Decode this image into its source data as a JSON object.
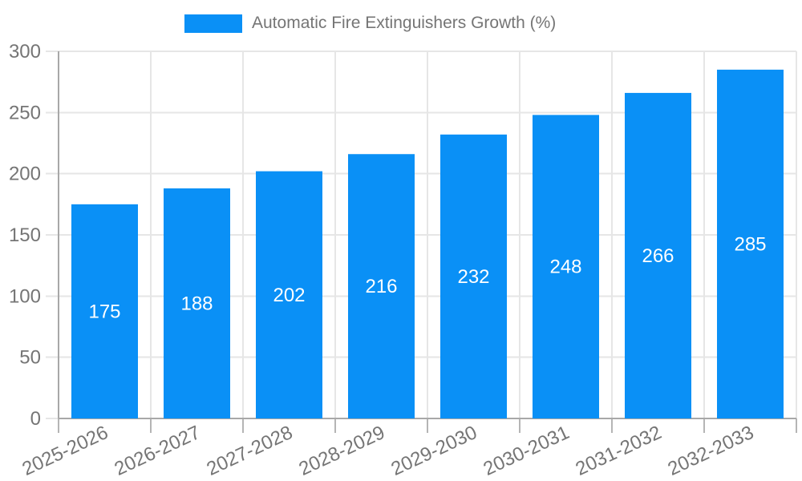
{
  "legend": {
    "label": "Automatic Fire Extinguishers Growth (%)"
  },
  "colors": {
    "bar": "#0a90f6",
    "bar_label": "#ffffff",
    "grid": "#e6e6e6",
    "axis": "#a8a8a8",
    "tick": "#b5b5b5",
    "label": "#757575",
    "background": "#ffffff"
  },
  "chart_data": {
    "type": "bar",
    "title": "",
    "xlabel": "",
    "ylabel": "",
    "categories": [
      "2025-2026",
      "2026-2027",
      "2027-2028",
      "2028-2029",
      "2029-2030",
      "2030-2031",
      "2031-2032",
      "2032-2033"
    ],
    "series": [
      {
        "name": "Automatic Fire Extinguishers Growth (%)",
        "values": [
          175,
          188,
          202,
          216,
          232,
          248,
          266,
          285
        ]
      }
    ],
    "ylim": [
      0,
      300
    ],
    "yticks": [
      0,
      50,
      100,
      150,
      200,
      250,
      300
    ],
    "grid": true,
    "legend_position": "top-center",
    "bar_label_position": "inside-middle",
    "x_tick_rotation": -25
  }
}
